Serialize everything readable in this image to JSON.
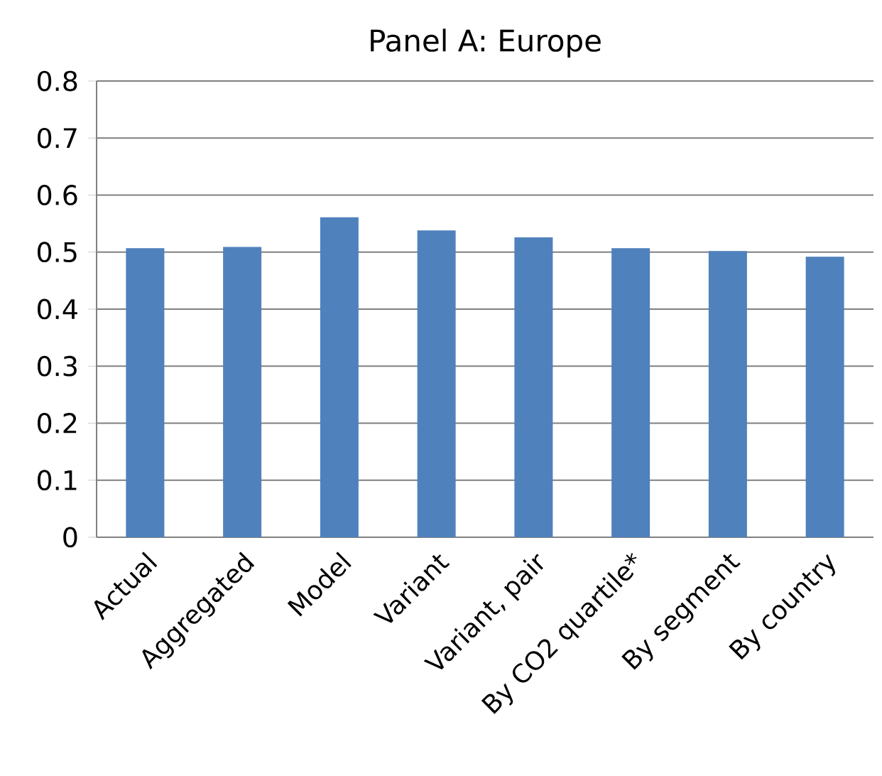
{
  "chart_data": {
    "type": "bar",
    "title": "Panel A: Europe",
    "categories": [
      "Actual",
      "Aggregated",
      "Model",
      "Variant",
      "Variant, pair",
      "By CO2 quartile*",
      "By segment",
      "By country"
    ],
    "values": [
      0.507,
      0.509,
      0.561,
      0.538,
      0.526,
      0.507,
      0.502,
      0.492
    ],
    "color": "#4f81bd",
    "ylim": [
      0,
      0.8
    ],
    "yticks": [
      0,
      0.1,
      0.2,
      0.3,
      0.4,
      0.5,
      0.6,
      0.7,
      0.8
    ],
    "grid": "y"
  }
}
